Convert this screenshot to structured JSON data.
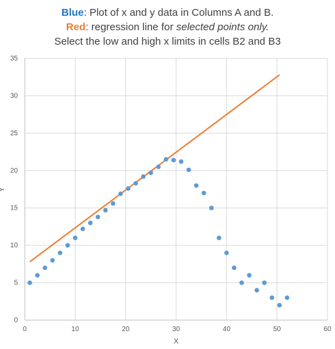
{
  "title": {
    "line1_key": "Blue",
    "line1_rest": ": Plot of x and y data in Columns A and B.",
    "line2_key": "Red",
    "line2_mid": ": regression line for ",
    "line2_em": "selected points only.",
    "line3": "Select the low and high x limits in cells B2 and B3"
  },
  "colors": {
    "scatter": "#5b9bd5",
    "regression": "#ed7d31",
    "grid": "#d9d9d9",
    "axis": "#bfbfbf"
  },
  "chart_data": {
    "type": "scatter",
    "xlabel": "X",
    "ylabel": "Y",
    "xlim": [
      0,
      60
    ],
    "ylim": [
      0,
      35
    ],
    "xticks": [
      0,
      10,
      20,
      30,
      40,
      50,
      60
    ],
    "yticks": [
      0,
      5,
      10,
      15,
      20,
      25,
      30,
      35
    ],
    "grid": true,
    "series": [
      {
        "kind": "points",
        "x": [
          1,
          2.5,
          4,
          5.5,
          7,
          8.5,
          10,
          11.5,
          13,
          14.5,
          16,
          17.5,
          19,
          20.5,
          22,
          23.5,
          25,
          26.5,
          28,
          29.5,
          31,
          32.5,
          34,
          35.5,
          37,
          38.5,
          40,
          41.5,
          43,
          44.5,
          46,
          47.5,
          49,
          50.5,
          52
        ],
        "y": [
          5,
          6,
          7,
          8,
          9,
          10,
          11,
          12.2,
          13,
          13.8,
          14.7,
          15.6,
          16.9,
          17.6,
          18.3,
          19.2,
          19.7,
          20.5,
          21.5,
          21.4,
          21.2,
          20.1,
          18,
          17,
          15,
          11,
          9,
          7,
          5,
          6,
          4,
          5,
          3,
          2,
          3
        ]
      },
      {
        "kind": "line",
        "x": [
          1,
          50.5
        ],
        "y": [
          7.8,
          32.8
        ]
      }
    ]
  }
}
